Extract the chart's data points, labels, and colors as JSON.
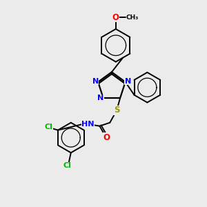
{
  "background_color": "#ebebeb",
  "bond_color": "#000000",
  "atom_colors": {
    "N": "#0000FF",
    "O": "#FF0000",
    "S": "#999900",
    "Cl": "#00BB00",
    "C": "#000000",
    "H": "#000000"
  },
  "figsize": [
    3.0,
    3.0
  ],
  "dpi": 100
}
